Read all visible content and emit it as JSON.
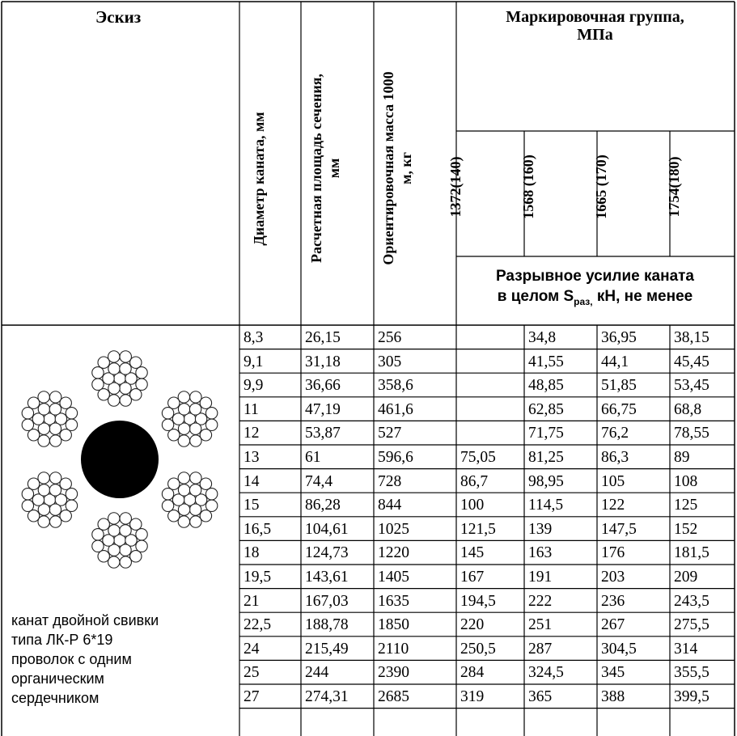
{
  "header": {
    "sketch": "Эскиз",
    "diameter": "Диаметр каната, мм",
    "area_line1": "Расчетная площадь сечения,",
    "area_line2": "мм",
    "mass_line1": "Ориентировочная масса 1000",
    "mass_line2": "м, кг",
    "group_line1": "Маркировочная группа,",
    "group_line2": "МПа",
    "grades": [
      "1372(140)",
      "1568 (160)",
      "1665 (170)",
      "1754(180)"
    ],
    "force_line1": "Разрывное усилие каната",
    "force_line2_prefix": "в целом S",
    "force_sub": "раз,",
    "force_line2_suffix": " кН, не менее"
  },
  "rope_description": [
    "канат двойной свивки",
    "типа ЛК-Р 6*19",
    "проволок с одним",
    "органическим",
    "сердечником"
  ],
  "rows": [
    [
      "8,3",
      "26,15",
      "256",
      "",
      "34,8",
      "36,95",
      "38,15"
    ],
    [
      "9,1",
      "31,18",
      "305",
      "",
      "41,55",
      "44,1",
      "45,45"
    ],
    [
      "9,9",
      "36,66",
      "358,6",
      "",
      "48,85",
      "51,85",
      "53,45"
    ],
    [
      "11",
      "47,19",
      "461,6",
      "",
      "62,85",
      "66,75",
      "68,8"
    ],
    [
      "12",
      "53,87",
      "527",
      "",
      "71,75",
      "76,2",
      "78,55"
    ],
    [
      "13",
      "61",
      "596,6",
      "75,05",
      "81,25",
      "86,3",
      "89"
    ],
    [
      "14",
      "74,4",
      "728",
      "86,7",
      "98,95",
      "105",
      "108"
    ],
    [
      "15",
      "86,28",
      "844",
      "100",
      "114,5",
      "122",
      "125"
    ],
    [
      "16,5",
      "104,61",
      "1025",
      "121,5",
      "139",
      "147,5",
      "152"
    ],
    [
      "18",
      "124,73",
      "1220",
      "145",
      "163",
      "176",
      "181,5"
    ],
    [
      "19,5",
      "143,61",
      "1405",
      "167",
      "191",
      "203",
      "209"
    ],
    [
      "21",
      "167,03",
      "1635",
      "194,5",
      "222",
      "236",
      "243,5"
    ],
    [
      "22,5",
      "188,78",
      "1850",
      "220",
      "251",
      "267",
      "275,5"
    ],
    [
      "24",
      "215,49",
      "2110",
      "250,5",
      "287",
      "304,5",
      "314"
    ],
    [
      "25",
      "244",
      "2390",
      "284",
      "324,5",
      "345",
      "355,5"
    ],
    [
      "27",
      "274,31",
      "2685",
      "319",
      "365",
      "388",
      "399,5"
    ]
  ],
  "colors": {
    "line": "#000000",
    "core": "#000000",
    "wire": "#ffffff"
  }
}
